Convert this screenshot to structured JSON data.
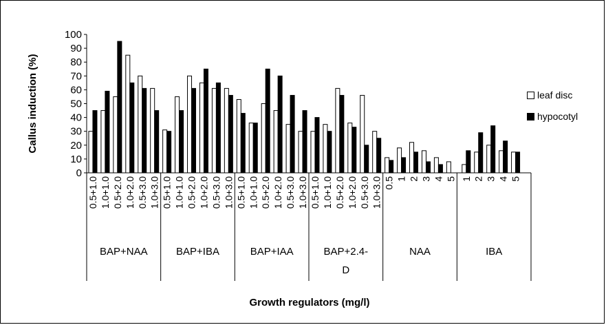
{
  "chart_data": {
    "type": "bar",
    "ylabel": "Callus induction (%)",
    "xlabel": "Growth regulators (mg/l)",
    "ylim": [
      0,
      100
    ],
    "yticks": [
      0,
      10,
      20,
      30,
      40,
      50,
      60,
      70,
      80,
      90,
      100
    ],
    "grid": false,
    "legend_position": "right",
    "series": [
      {
        "name": "leaf disc",
        "color": "#ffffff"
      },
      {
        "name": "hypocotyl",
        "color": "#000000"
      }
    ],
    "groups": [
      {
        "label": "BAP+NAA",
        "categories": [
          "0.5+1.0",
          "1.0+1.0",
          "0.5+2.0",
          "1.0+2.0",
          "0.5+3.0",
          "1.0+3.0"
        ],
        "leaf_disc": [
          30,
          45,
          55,
          85,
          70,
          61
        ],
        "hypocotyl": [
          45,
          59,
          95,
          65,
          61,
          45
        ]
      },
      {
        "label": "BAP+IBA",
        "categories": [
          "0.5+1.0",
          "1.0+1.0",
          "0.5+2.0",
          "1.0+2.0",
          "0.5+3.0",
          "1.0+3.0"
        ],
        "leaf_disc": [
          31,
          55,
          70,
          65,
          61,
          61
        ],
        "hypocotyl": [
          30,
          45,
          61,
          75,
          65,
          56
        ]
      },
      {
        "label": "BAP+IAA",
        "categories": [
          "0.5+1.0",
          "1.0+1.0",
          "0.5+2.0",
          "1.0+2.0",
          "0.5+3.0",
          "1.0+3.0"
        ],
        "leaf_disc": [
          53,
          36,
          50,
          45,
          35,
          30
        ],
        "hypocotyl": [
          43,
          36,
          75,
          70,
          56,
          45
        ]
      },
      {
        "label": "BAP+2.4-D",
        "categories": [
          "0.5+1.0",
          "1.0+1.0",
          "0.5+2.0",
          "1.0+2.0",
          "0.5+3.0",
          "1.0+3.0"
        ],
        "leaf_disc": [
          30,
          35,
          61,
          36,
          56,
          30
        ],
        "hypocotyl": [
          40,
          30,
          56,
          33,
          20,
          25
        ]
      },
      {
        "label": "NAA",
        "categories": [
          "0.5",
          "1",
          "2",
          "3",
          "4",
          "5"
        ],
        "leaf_disc": [
          11,
          18,
          22,
          16,
          11,
          8
        ],
        "hypocotyl": [
          9,
          11,
          15,
          8,
          6,
          0
        ]
      },
      {
        "label": "IBA",
        "categories": [
          "1",
          "2",
          "3",
          "4",
          "5"
        ],
        "leaf_disc": [
          6,
          15,
          20,
          16,
          15
        ],
        "hypocotyl": [
          16,
          29,
          34,
          23,
          15
        ]
      }
    ]
  }
}
